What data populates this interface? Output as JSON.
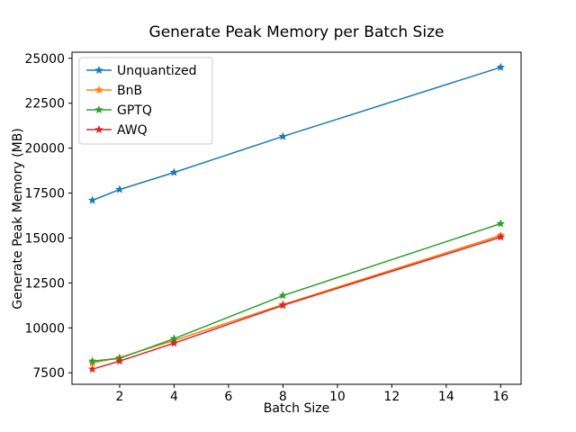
{
  "chart_data": {
    "type": "line",
    "title": "Generate Peak Memory per Batch Size",
    "xlabel": "Batch Size",
    "ylabel": "Generate Peak Memory (MB)",
    "x": [
      1,
      2,
      4,
      8,
      16
    ],
    "series": [
      {
        "name": "Unquantized",
        "color": "#1f77b4",
        "values": [
          17100,
          17700,
          18650,
          20650,
          24500
        ]
      },
      {
        "name": "BnB",
        "color": "#ff7f0e",
        "values": [
          8050,
          8350,
          9300,
          11300,
          15150
        ]
      },
      {
        "name": "GPTQ",
        "color": "#2ca02c",
        "values": [
          8150,
          8300,
          9400,
          11800,
          15800
        ]
      },
      {
        "name": "AWQ",
        "color": "#d62728",
        "values": [
          7700,
          8150,
          9150,
          11250,
          15050
        ]
      }
    ],
    "xlim": [
      0.25,
      16.75
    ],
    "ylim": [
      6860,
      25340
    ],
    "xticks": [
      2,
      4,
      6,
      8,
      10,
      12,
      14,
      16
    ],
    "yticks": [
      7500,
      10000,
      12500,
      15000,
      17500,
      20000,
      22500,
      25000
    ],
    "grid": false,
    "marker": "star",
    "legend": {
      "position": "upper left",
      "entries": [
        "Unquantized",
        "BnB",
        "GPTQ",
        "AWQ"
      ]
    }
  }
}
